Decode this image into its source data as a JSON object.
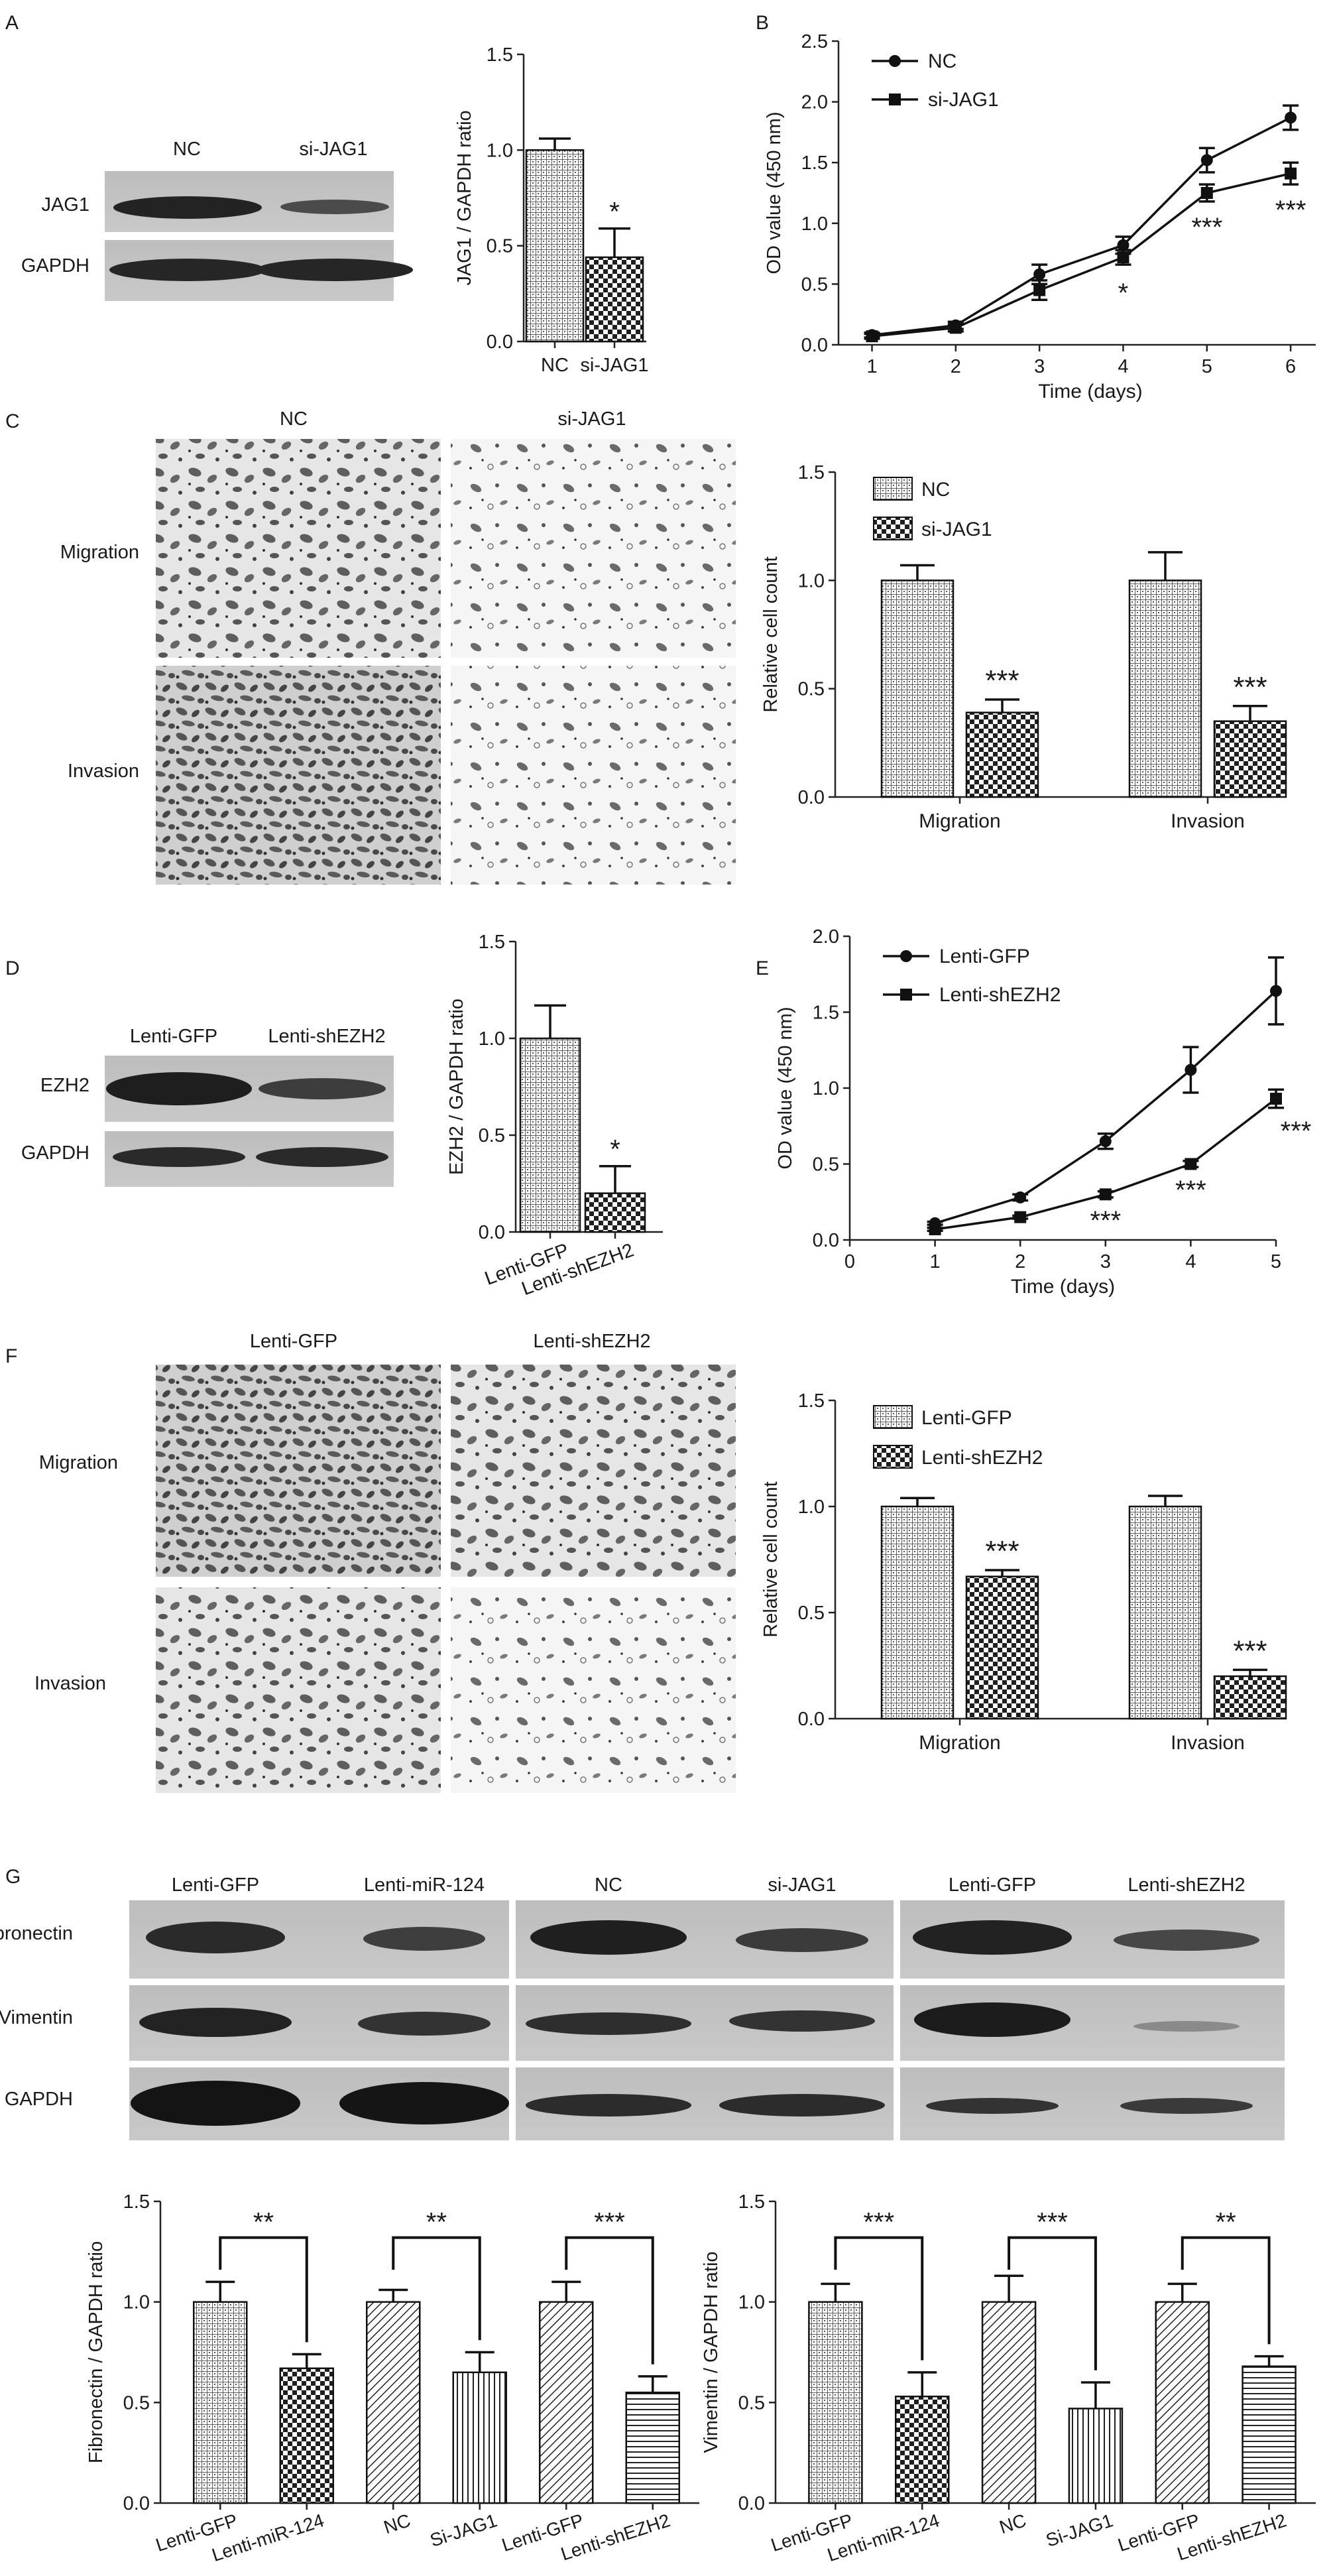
{
  "panels": [
    {
      "key": "A",
      "label": "A"
    },
    {
      "key": "B",
      "label": "B"
    },
    {
      "key": "C",
      "label": "C"
    },
    {
      "key": "D",
      "label": "D"
    },
    {
      "key": "E",
      "label": "E"
    },
    {
      "key": "F",
      "label": "F"
    },
    {
      "key": "G",
      "label": "G"
    }
  ],
  "blots": {
    "A": {
      "lanes": [
        "NC",
        "si-JAG1"
      ],
      "rows": [
        "JAG1",
        "GAPDH"
      ]
    },
    "D": {
      "lanes": [
        "Lenti-GFP",
        "Lenti-shEZH2"
      ],
      "rows": [
        "EZH2",
        "GAPDH"
      ]
    },
    "G": {
      "lanes": [
        "Lenti-GFP",
        "Lenti-miR-124",
        "NC",
        "si-JAG1",
        "Lenti-GFP",
        "Lenti-shEZH2"
      ],
      "rows": [
        "Fibronectin",
        "Vimentin",
        "GAPDH"
      ]
    }
  },
  "micrographs": {
    "C": {
      "columns": [
        "NC",
        "si-JAG1"
      ],
      "rows": [
        "Migration",
        "Invasion"
      ]
    },
    "F": {
      "columns": [
        "Lenti-GFP",
        "Lenti-shEZH2"
      ],
      "rows": [
        "Migration",
        "Invasion"
      ]
    }
  },
  "chart_data": [
    {
      "id": "A-bar",
      "type": "bar",
      "categories": [
        "NC",
        "si-JAG1"
      ],
      "values": [
        1.0,
        0.44
      ],
      "errors": [
        0.06,
        0.15
      ],
      "patterns": [
        "grid",
        "check"
      ],
      "ylabel": "JAG1 / GAPDH ratio",
      "ylim": [
        0,
        1.5
      ],
      "yticks": [
        "0.0",
        "0.5",
        "1.0",
        "1.5"
      ],
      "annotations": [
        "",
        "*"
      ]
    },
    {
      "id": "B-line",
      "type": "line",
      "x": [
        1,
        2,
        3,
        4,
        5,
        6
      ],
      "xticks": [
        "1",
        "2",
        "3",
        "4",
        "5",
        "6"
      ],
      "series": [
        {
          "name": "NC",
          "marker": "circle",
          "values": [
            0.08,
            0.16,
            0.58,
            0.82,
            1.52,
            1.87
          ],
          "errors": [
            0.02,
            0.03,
            0.08,
            0.07,
            0.1,
            0.1
          ]
        },
        {
          "name": "si-JAG1",
          "marker": "square",
          "values": [
            0.07,
            0.14,
            0.45,
            0.72,
            1.25,
            1.41
          ],
          "errors": [
            0.02,
            0.03,
            0.08,
            0.06,
            0.07,
            0.09
          ]
        }
      ],
      "xlabel": "Time (days)",
      "ylabel": "OD value (450 nm)",
      "ylim": [
        0,
        2.5
      ],
      "yticks": [
        "0.0",
        "0.5",
        "1.0",
        "1.5",
        "2.0",
        "2.5"
      ],
      "annotations": [
        "",
        "",
        "",
        "*",
        "***",
        "***"
      ],
      "legend": "top-left"
    },
    {
      "id": "C-bar",
      "type": "bar",
      "categories": [
        "Migration",
        "Invasion"
      ],
      "series": [
        {
          "name": "NC",
          "pattern": "grid",
          "values": [
            1.0,
            1.0
          ],
          "errors": [
            0.07,
            0.13
          ]
        },
        {
          "name": "si-JAG1",
          "pattern": "check",
          "values": [
            0.39,
            0.35
          ],
          "errors": [
            0.06,
            0.07
          ]
        }
      ],
      "ylabel": "Relative cell count",
      "ylim": [
        0,
        1.5
      ],
      "yticks": [
        "0.0",
        "0.5",
        "1.0",
        "1.5"
      ],
      "annotations": [
        "***",
        "***"
      ],
      "legend": "top-left"
    },
    {
      "id": "D-bar",
      "type": "bar",
      "categories": [
        "Lenti-GFP",
        "Lenti-shEZH2"
      ],
      "values": [
        1.0,
        0.2
      ],
      "errors": [
        0.17,
        0.14
      ],
      "patterns": [
        "grid",
        "check"
      ],
      "ylabel": "EZH2 / GAPDH ratio",
      "ylim": [
        0,
        1.5
      ],
      "yticks": [
        "0.0",
        "0.5",
        "1.0",
        "1.5"
      ],
      "annotations": [
        "",
        "*"
      ]
    },
    {
      "id": "E-line",
      "type": "line",
      "x": [
        1,
        2,
        3,
        4,
        5
      ],
      "xticks": [
        "0",
        "1",
        "2",
        "3",
        "4",
        "5"
      ],
      "series": [
        {
          "name": "Lenti-GFP",
          "marker": "circle",
          "values": [
            0.11,
            0.28,
            0.65,
            1.12,
            1.64
          ],
          "errors": [
            0.01,
            0.02,
            0.05,
            0.15,
            0.22
          ]
        },
        {
          "name": "Lenti-shEZH2",
          "marker": "square",
          "values": [
            0.07,
            0.15,
            0.3,
            0.5,
            0.93
          ],
          "errors": [
            0.01,
            0.01,
            0.02,
            0.02,
            0.06
          ]
        }
      ],
      "xlabel": "Time (days)",
      "ylabel": "OD value (450 nm)",
      "ylim": [
        0,
        2.0
      ],
      "xlim": [
        0,
        5
      ],
      "yticks": [
        "0.0",
        "0.5",
        "1.0",
        "1.5",
        "2.0"
      ],
      "annotations": [
        "",
        "",
        "***",
        "***",
        "***"
      ],
      "legend": "top-left"
    },
    {
      "id": "F-bar",
      "type": "bar",
      "categories": [
        "Migration",
        "Invasion"
      ],
      "series": [
        {
          "name": "Lenti-GFP",
          "pattern": "grid",
          "values": [
            1.0,
            1.0
          ],
          "errors": [
            0.04,
            0.05
          ]
        },
        {
          "name": "Lenti-shEZH2",
          "pattern": "check",
          "values": [
            0.67,
            0.2
          ],
          "errors": [
            0.03,
            0.03
          ]
        }
      ],
      "ylabel": "Relative cell count",
      "ylim": [
        0,
        1.5
      ],
      "yticks": [
        "0.0",
        "0.5",
        "1.0",
        "1.5"
      ],
      "annotations": [
        "***",
        "***"
      ],
      "legend": "top-left"
    },
    {
      "id": "G-fn",
      "type": "bar",
      "categories": [
        "Lenti-GFP",
        "Lenti-miR-124",
        "NC",
        "Si-JAG1",
        "Lenti-GFP",
        "Lenti-shEZH2"
      ],
      "values": [
        1.0,
        0.67,
        1.0,
        0.65,
        1.0,
        0.55
      ],
      "errors": [
        0.1,
        0.07,
        0.06,
        0.1,
        0.1,
        0.08
      ],
      "patterns": [
        "grid",
        "check",
        "diag",
        "vlines",
        "diag",
        "hlines"
      ],
      "ylabel": "Fibronectin / GAPDH ratio",
      "ylim": [
        0,
        1.5
      ],
      "yticks": [
        "0.0",
        "0.5",
        "1.0",
        "1.5"
      ],
      "brackets": [
        {
          "from": 0,
          "to": 1,
          "label": "**"
        },
        {
          "from": 2,
          "to": 3,
          "label": "**"
        },
        {
          "from": 4,
          "to": 5,
          "label": "***"
        }
      ]
    },
    {
      "id": "G-vim",
      "type": "bar",
      "categories": [
        "Lenti-GFP",
        "Lenti-miR-124",
        "NC",
        "Si-JAG1",
        "Lenti-GFP",
        "Lenti-shEZH2"
      ],
      "values": [
        1.0,
        0.53,
        1.0,
        0.47,
        1.0,
        0.68
      ],
      "errors": [
        0.09,
        0.12,
        0.13,
        0.13,
        0.09,
        0.05
      ],
      "patterns": [
        "grid",
        "check",
        "diag",
        "vlines",
        "diag",
        "hlines"
      ],
      "ylabel": "Vimentin / GAPDH ratio",
      "ylim": [
        0,
        1.5
      ],
      "yticks": [
        "0.0",
        "0.5",
        "1.0",
        "1.5"
      ],
      "brackets": [
        {
          "from": 0,
          "to": 1,
          "label": "***"
        },
        {
          "from": 2,
          "to": 3,
          "label": "***"
        },
        {
          "from": 4,
          "to": 5,
          "label": "**"
        }
      ]
    }
  ]
}
